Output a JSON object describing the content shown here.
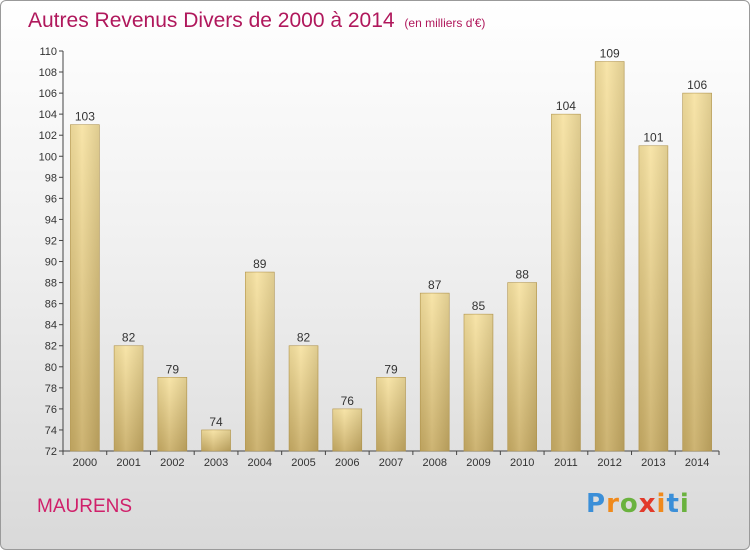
{
  "header": {
    "title": "Autres Revenus Divers de 2000 à 2014",
    "unit": "(en milliers d'€)"
  },
  "commune": "MAURENS",
  "logo": {
    "letters": [
      "P",
      "r",
      "o",
      "x",
      "i",
      "t",
      "i"
    ],
    "colors": [
      "#3b8fd8",
      "#f08a1c",
      "#6ab23e",
      "#e23a2a",
      "#f08a1c",
      "#3b8fd8",
      "#6ab23e"
    ]
  },
  "colors": {
    "bar_light": "#f7e2a0",
    "bar_dark": "#c8ac64",
    "title": "#b0185c",
    "commune": "#d0206a"
  },
  "chart_data": {
    "type": "bar",
    "title": "Autres Revenus Divers de 2000 à 2014",
    "categories": [
      "2000",
      "2001",
      "2002",
      "2003",
      "2004",
      "2005",
      "2006",
      "2007",
      "2008",
      "2009",
      "2010",
      "2011",
      "2012",
      "2013",
      "2014"
    ],
    "values": [
      103,
      82,
      79,
      74,
      89,
      82,
      76,
      79,
      87,
      85,
      88,
      104,
      109,
      101,
      106
    ],
    "ylim": [
      72,
      110
    ],
    "yticks": [
      72,
      74,
      76,
      78,
      80,
      82,
      84,
      86,
      88,
      90,
      92,
      94,
      96,
      98,
      100,
      102,
      104,
      106,
      108,
      110
    ],
    "grid": false,
    "xlabel": "",
    "ylabel": ""
  }
}
